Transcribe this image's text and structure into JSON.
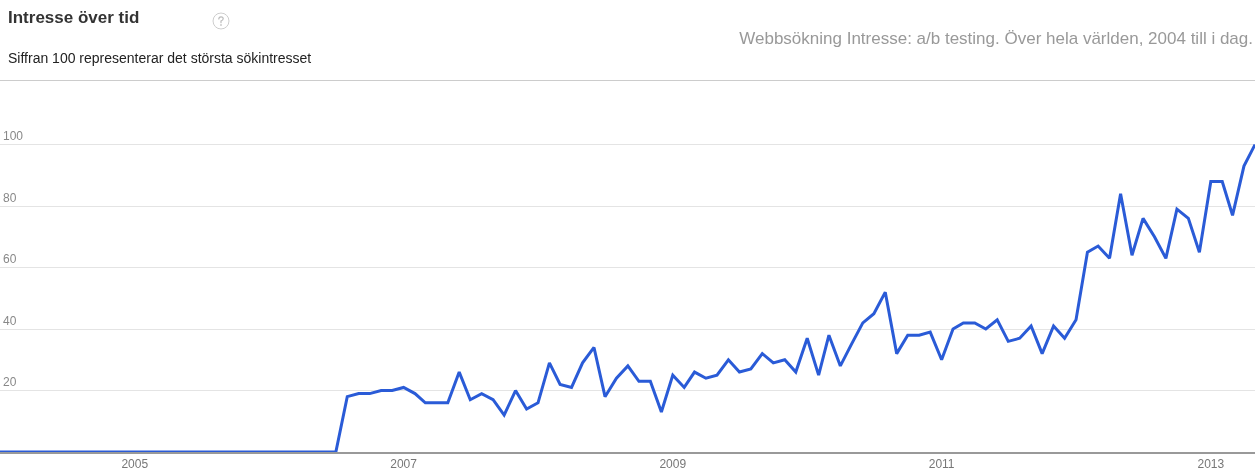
{
  "chart_data": {
    "type": "line",
    "title": "Intresse över tid",
    "subtitle": "Siffran 100 representerar det största sökintresset",
    "annotations": [
      "Webbsökning Intresse: a/b testing. Över hela världen, 2004 till i dag."
    ],
    "x": [
      "2004-01",
      "2006-07",
      "2006-08",
      "2006-09",
      "2006-10",
      "2006-11",
      "2006-12",
      "2007-01",
      "2007-02",
      "2007-03",
      "2007-04",
      "2007-05",
      "2007-06",
      "2007-07",
      "2007-08",
      "2007-09",
      "2007-10",
      "2007-11",
      "2007-12",
      "2008-01",
      "2008-02",
      "2008-03",
      "2008-04",
      "2008-05",
      "2008-06",
      "2008-07",
      "2008-08",
      "2008-09",
      "2008-10",
      "2008-11",
      "2008-12",
      "2009-01",
      "2009-02",
      "2009-03",
      "2009-04",
      "2009-05",
      "2009-06",
      "2009-07",
      "2009-08",
      "2009-09",
      "2009-10",
      "2009-11",
      "2009-12",
      "2010-01",
      "2010-02",
      "2010-03",
      "2010-04",
      "2010-05",
      "2010-06",
      "2010-07",
      "2010-08",
      "2010-09",
      "2010-10",
      "2010-11",
      "2010-12",
      "2011-01",
      "2011-02",
      "2011-03",
      "2011-04",
      "2011-05",
      "2011-06",
      "2011-07",
      "2011-08",
      "2011-09",
      "2011-10",
      "2011-11",
      "2011-12",
      "2012-01",
      "2012-02",
      "2012-03",
      "2012-04",
      "2012-05",
      "2012-06",
      "2012-07",
      "2012-08",
      "2012-09",
      "2012-10",
      "2012-11",
      "2012-12",
      "2013-01",
      "2013-02",
      "2013-03",
      "2013-04",
      "2013-05"
    ],
    "series": [
      {
        "color": "#2a5bd7",
        "values": [
          0,
          0,
          18,
          19,
          19,
          20,
          20,
          21,
          19,
          16,
          16,
          16,
          26,
          17,
          19,
          17,
          12,
          20,
          14,
          16,
          29,
          22,
          21,
          29,
          34,
          18,
          24,
          28,
          23,
          23,
          13,
          25,
          21,
          26,
          24,
          25,
          30,
          26,
          27,
          32,
          29,
          30,
          26,
          37,
          25,
          38,
          28,
          35,
          42,
          45,
          52,
          32,
          38,
          38,
          39,
          30,
          40,
          42,
          42,
          40,
          43,
          36,
          37,
          41,
          32,
          41,
          37,
          43,
          65,
          67,
          63,
          84,
          64,
          76,
          70,
          63,
          79,
          76,
          65,
          88,
          88,
          77,
          93,
          100
        ]
      }
    ],
    "xlim": [
      "2004-01-01",
      "2013-05-01"
    ],
    "xticks": [
      {
        "value": "2005-01-01",
        "label": "2005"
      },
      {
        "value": "2007-01-01",
        "label": "2007"
      },
      {
        "value": "2009-01-01",
        "label": "2009"
      },
      {
        "value": "2011-01-01",
        "label": "2011"
      },
      {
        "value": "2013-01-01",
        "label": "2013"
      }
    ],
    "ylim": [
      0,
      108
    ],
    "yticks": [
      20,
      40,
      60,
      80,
      100
    ],
    "grid": "y"
  }
}
